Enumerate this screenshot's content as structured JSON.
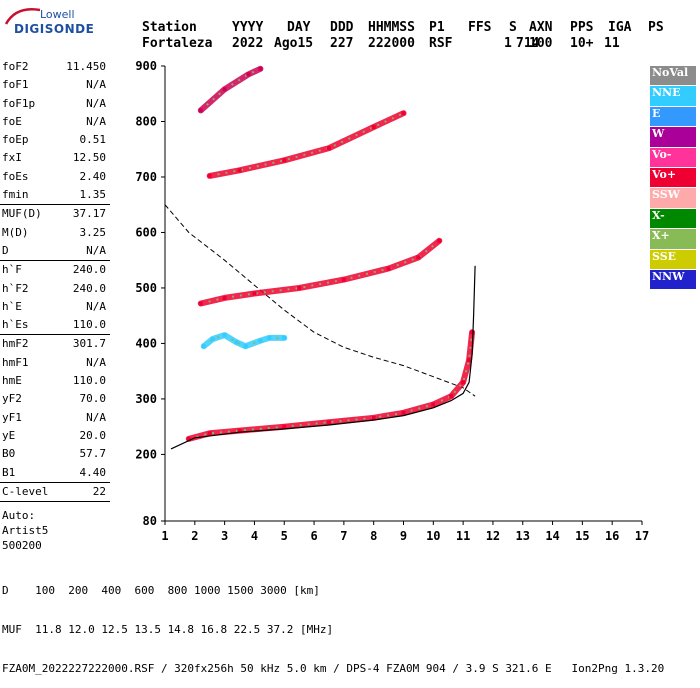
{
  "brand": {
    "line1": "Lowell",
    "line2": "DIGISONDE"
  },
  "header": {
    "labels": [
      "Station",
      "YYYY",
      "DAY",
      "DDD",
      "HHMMSS",
      "P1",
      "FFS",
      "S",
      "AXN",
      "PPS",
      "IGA",
      "PS"
    ],
    "values": [
      "Fortaleza",
      "2022",
      "Ago15",
      "227",
      "222000",
      "RSF",
      "1",
      "714",
      "100",
      "10+",
      "11"
    ]
  },
  "params": [
    {
      "name": "foF2",
      "value": "11.450"
    },
    {
      "name": "foF1",
      "value": "N/A"
    },
    {
      "name": "foF1p",
      "value": "N/A"
    },
    {
      "name": "foE",
      "value": "N/A"
    },
    {
      "name": "foEp",
      "value": "0.51"
    },
    {
      "name": "fxI",
      "value": "12.50"
    },
    {
      "name": "foEs",
      "value": "2.40"
    },
    {
      "name": "fmin",
      "value": "1.35"
    },
    {
      "sep": true
    },
    {
      "name": "MUF(D)",
      "value": "37.17"
    },
    {
      "name": "M(D)",
      "value": "3.25"
    },
    {
      "name": "D",
      "value": "N/A"
    },
    {
      "sep": true
    },
    {
      "name": "h`F",
      "value": "240.0"
    },
    {
      "name": "h`F2",
      "value": "240.0"
    },
    {
      "name": "h`E",
      "value": "N/A"
    },
    {
      "name": "h`Es",
      "value": "110.0"
    },
    {
      "sep": true
    },
    {
      "name": "hmF2",
      "value": "301.7"
    },
    {
      "name": "hmF1",
      "value": "N/A"
    },
    {
      "name": "hmE",
      "value": "110.0"
    },
    {
      "name": "yF2",
      "value": "70.0"
    },
    {
      "name": "yF1",
      "value": "N/A"
    },
    {
      "name": "yE",
      "value": "20.0"
    },
    {
      "name": "B0",
      "value": "57.7"
    },
    {
      "name": "B1",
      "value": "4.40"
    },
    {
      "sep": true
    },
    {
      "name": "C-level",
      "value": "22"
    },
    {
      "sep": true
    }
  ],
  "auto_info": [
    "Auto:",
    "Artist5",
    "500200"
  ],
  "legend": [
    {
      "label": "NoVal",
      "color": "#8c8c8c"
    },
    {
      "label": "NNE",
      "color": "#33ccff"
    },
    {
      "label": "E",
      "color": "#3399ff"
    },
    {
      "label": "W",
      "color": "#aa0099"
    },
    {
      "label": "Vo-",
      "color": "#ff3399"
    },
    {
      "label": "Vo+",
      "color": "#ee0033"
    },
    {
      "label": "SSW",
      "color": "#ffaaaa"
    },
    {
      "label": "X-",
      "color": "#008800"
    },
    {
      "label": "X+",
      "color": "#88bb55"
    },
    {
      "label": "SSE",
      "color": "#cccc00"
    },
    {
      "label": "NNW",
      "color": "#2222cc"
    }
  ],
  "footer": {
    "line1": "D    100  200  400  600  800 1000 1500 3000 [km]",
    "line2": "MUF  11.8 12.0 12.5 13.5 14.8 16.8 22.5 37.2 [MHz]",
    "line3": "FZA0M_2022227222000.RSF / 320fx256h 50 kHz 5.0 km / DPS-4 FZA0M 904 / 3.9 S 321.6 E   Ion2Png 1.3.20"
  },
  "chart_data": {
    "type": "scatter",
    "xlim": [
      1,
      17
    ],
    "ylim": [
      80,
      900
    ],
    "xticks": [
      1,
      2,
      3,
      4,
      5,
      6,
      7,
      8,
      9,
      10,
      11,
      12,
      13,
      14,
      15,
      16,
      17
    ],
    "yticks": [
      80,
      200,
      300,
      400,
      500,
      600,
      700,
      800,
      900
    ],
    "traces": [
      {
        "name": "F2 trace 1",
        "color": "#ee0033",
        "points": [
          [
            1.8,
            228
          ],
          [
            2.5,
            238
          ],
          [
            3.5,
            243
          ],
          [
            5,
            250
          ],
          [
            6.5,
            258
          ],
          [
            8,
            266
          ],
          [
            9,
            275
          ],
          [
            10,
            290
          ],
          [
            10.6,
            305
          ],
          [
            11,
            330
          ],
          [
            11.2,
            370
          ],
          [
            11.3,
            420
          ]
        ]
      },
      {
        "name": "F2 trace 2",
        "color": "#ee0033",
        "points": [
          [
            2.2,
            472
          ],
          [
            3,
            482
          ],
          [
            4,
            490
          ],
          [
            5.5,
            500
          ],
          [
            7,
            515
          ],
          [
            8.5,
            535
          ],
          [
            9.5,
            555
          ],
          [
            10.2,
            585
          ]
        ]
      },
      {
        "name": "F2 trace 3",
        "color": "#ee0033",
        "points": [
          [
            2.5,
            702
          ],
          [
            3.5,
            712
          ],
          [
            5,
            730
          ],
          [
            6.5,
            752
          ],
          [
            8,
            790
          ],
          [
            9,
            815
          ]
        ]
      },
      {
        "name": "F2 trace 4",
        "color": "#cc0055",
        "points": [
          [
            2.2,
            820
          ],
          [
            3,
            858
          ],
          [
            3.8,
            885
          ],
          [
            4.2,
            895
          ]
        ]
      },
      {
        "name": "Es patch",
        "color": "#33ccff",
        "points": [
          [
            2.3,
            395
          ],
          [
            2.6,
            408
          ],
          [
            3,
            415
          ],
          [
            3.4,
            402
          ],
          [
            3.7,
            395
          ],
          [
            4.2,
            405
          ],
          [
            4.5,
            410
          ],
          [
            5,
            410
          ]
        ]
      }
    ],
    "model_profile": {
      "name": "profile",
      "color": "#000000",
      "points": [
        [
          1.2,
          210
        ],
        [
          2,
          230
        ],
        [
          3.5,
          240
        ],
        [
          5,
          246
        ],
        [
          6.5,
          253
        ],
        [
          8,
          262
        ],
        [
          9,
          270
        ],
        [
          10,
          284
        ],
        [
          10.6,
          297
        ],
        [
          11,
          310
        ],
        [
          11.2,
          330
        ],
        [
          11.3,
          380
        ],
        [
          11.35,
          450
        ],
        [
          11.4,
          540
        ]
      ]
    },
    "model_dashed": {
      "name": "dashed",
      "color": "#000000",
      "points": [
        [
          1,
          650
        ],
        [
          1.8,
          600
        ],
        [
          3,
          550
        ],
        [
          4,
          505
        ],
        [
          5,
          460
        ],
        [
          6,
          420
        ],
        [
          7,
          393
        ],
        [
          8,
          375
        ],
        [
          9,
          360
        ],
        [
          10,
          340
        ],
        [
          11,
          320
        ],
        [
          11.4,
          305
        ]
      ]
    }
  }
}
